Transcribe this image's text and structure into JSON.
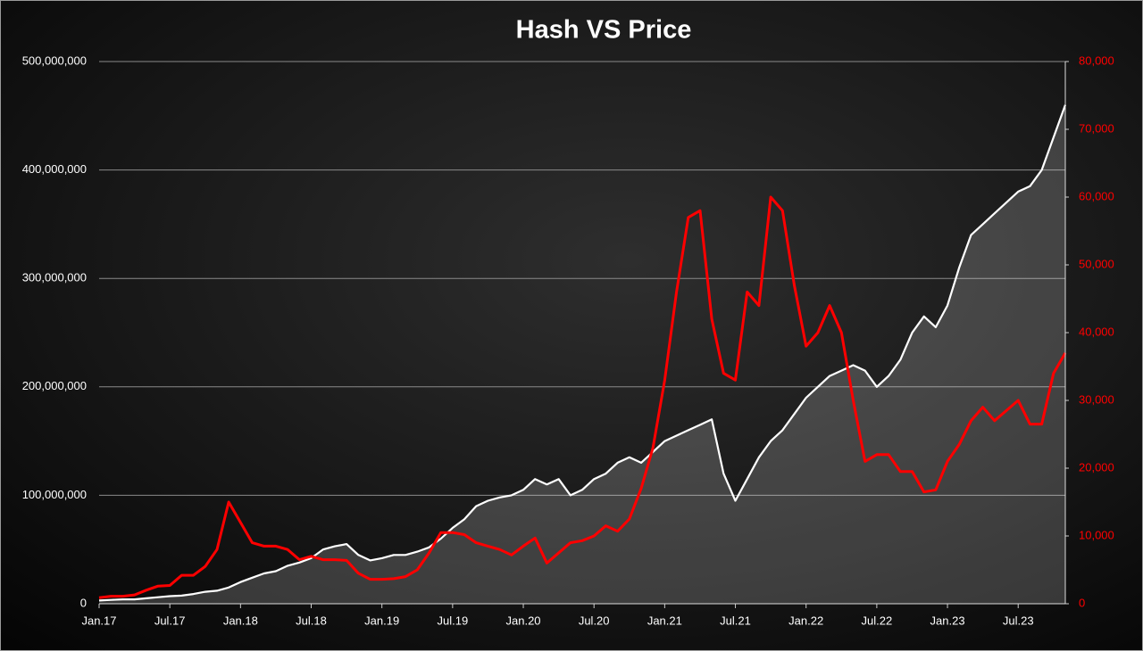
{
  "chart_data": {
    "type": "line",
    "title": "Hash VS Price",
    "categories": [
      "Jan.17",
      null,
      null,
      null,
      null,
      null,
      "Jul.17",
      null,
      null,
      null,
      null,
      null,
      "Jan.18",
      null,
      null,
      null,
      null,
      null,
      "Jul.18",
      null,
      null,
      null,
      null,
      null,
      "Jan.19",
      null,
      null,
      null,
      null,
      null,
      "Jul.19",
      null,
      null,
      null,
      null,
      null,
      "Jan.20",
      null,
      null,
      null,
      null,
      null,
      "Jul.20",
      null,
      null,
      null,
      null,
      null,
      "Jan.21",
      null,
      null,
      null,
      null,
      null,
      "Jul.21",
      null,
      null,
      null,
      null,
      null,
      "Jan.22",
      null,
      null,
      null,
      null,
      null,
      "Jul.22",
      null,
      null,
      null,
      null,
      null,
      "Jan.23",
      null,
      null,
      null,
      null,
      null,
      "Jul.23",
      null,
      null,
      null,
      null
    ],
    "series": [
      {
        "color": "#ffffff",
        "area": true,
        "axis": "y",
        "values": [
          3000000,
          3500000,
          4000000,
          4000000,
          5000000,
          6000000,
          7000000,
          7500000,
          9000000,
          11000000,
          12000000,
          15000000,
          20000000,
          24000000,
          28000000,
          30000000,
          35000000,
          38000000,
          42000000,
          50000000,
          53000000,
          55000000,
          45000000,
          40000000,
          42000000,
          45000000,
          45000000,
          48000000,
          52000000,
          60000000,
          70000000,
          78000000,
          90000000,
          95000000,
          98000000,
          100000000,
          105000000,
          115000000,
          110000000,
          115000000,
          100000000,
          105000000,
          115000000,
          120000000,
          130000000,
          135000000,
          130000000,
          140000000,
          150000000,
          155000000,
          160000000,
          165000000,
          170000000,
          120000000,
          95000000,
          115000000,
          135000000,
          150000000,
          160000000,
          175000000,
          190000000,
          200000000,
          210000000,
          215000000,
          220000000,
          215000000,
          200000000,
          210000000,
          225000000,
          250000000,
          265000000,
          255000000,
          275000000,
          310000000,
          340000000,
          350000000,
          360000000,
          370000000,
          380000000,
          385000000,
          400000000,
          430000000,
          460000000
        ]
      },
      {
        "color": "#ff0000",
        "axis": "y2",
        "values": [
          900,
          1100,
          1100,
          1300,
          2000,
          2600,
          2700,
          4200,
          4200,
          5500,
          8000,
          15000,
          12000,
          9000,
          8500,
          8500,
          8000,
          6500,
          7000,
          6500,
          6500,
          6400,
          4500,
          3600,
          3600,
          3700,
          4000,
          5000,
          7500,
          10500,
          10500,
          10200,
          9000,
          8500,
          8000,
          7200,
          8500,
          9700,
          6000,
          7500,
          9000,
          9300,
          10000,
          11500,
          10700,
          12500,
          17000,
          23000,
          33000,
          46000,
          57000,
          58000,
          42000,
          34000,
          33000,
          46000,
          44000,
          60000,
          58000,
          47000,
          38000,
          40000,
          44000,
          40000,
          30000,
          21000,
          22000,
          22000,
          19500,
          19500,
          16500,
          16800,
          21000,
          23500,
          27000,
          29000,
          27000,
          28500,
          30000,
          26500,
          26500,
          34000,
          37000
        ]
      }
    ],
    "ylim": [
      0,
      500000000
    ],
    "yticks": [
      0,
      {
        "value": 100000000,
        "label": "100,000,000"
      },
      {
        "value": 200000000,
        "label": "200,000,000"
      },
      {
        "value": 300000000,
        "label": "300,000,000"
      },
      {
        "value": 400000000,
        "label": "400,000,000"
      },
      {
        "value": 500000000,
        "label": "500,000,000"
      }
    ],
    "y2lim": [
      0,
      80000
    ],
    "y2ticks": [
      0,
      {
        "value": 10000,
        "label": "10,000"
      },
      {
        "value": 20000,
        "label": "20,000"
      },
      {
        "value": 30000,
        "label": "30,000"
      },
      {
        "value": 40000,
        "label": "40,000"
      },
      {
        "value": 50000,
        "label": "50,000"
      },
      {
        "value": 60000,
        "label": "60,000"
      },
      {
        "value": 70000,
        "label": "70,000"
      },
      {
        "value": 80000,
        "label": "80,000"
      }
    ],
    "y2color": "#ff0000",
    "grid": true
  }
}
